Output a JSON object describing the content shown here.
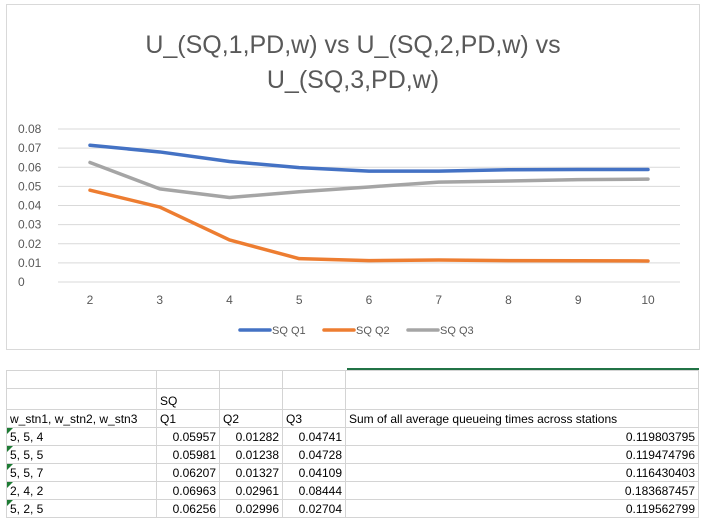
{
  "chart_data": {
    "type": "line",
    "title_lines": [
      "U_(SQ,1,PD,w) vs U_(SQ,2,PD,w) vs",
      "U_(SQ,3,PD,w)"
    ],
    "x": [
      2,
      3,
      4,
      5,
      6,
      7,
      8,
      9,
      10
    ],
    "y_ticks": [
      "0",
      "0.01",
      "0.02",
      "0.03",
      "0.04",
      "0.05",
      "0.06",
      "0.07",
      "0.08"
    ],
    "ylim": [
      0,
      0.08
    ],
    "grid": true,
    "legend_position": "bottom",
    "series": [
      {
        "name": "SQ Q1",
        "color": "#4472c4",
        "values": [
          0.0715,
          0.068,
          0.063,
          0.0598,
          0.058,
          0.058,
          0.0587,
          0.0588,
          0.0588
        ]
      },
      {
        "name": "SQ Q2",
        "color": "#ed7d31",
        "values": [
          0.048,
          0.0392,
          0.022,
          0.0122,
          0.0112,
          0.0115,
          0.0112,
          0.0111,
          0.011
        ]
      },
      {
        "name": "SQ Q3",
        "color": "#a5a5a5",
        "values": [
          0.0625,
          0.0487,
          0.0442,
          0.0472,
          0.0497,
          0.0522,
          0.0528,
          0.0535,
          0.0538
        ]
      }
    ]
  },
  "sheet": {
    "header1": [
      "",
      "SQ",
      "",
      "",
      ""
    ],
    "header2": [
      "w_stn1, w_stn2, w_stn3",
      "Q1",
      "Q2",
      "Q3",
      "Sum of all average queueing times across stations"
    ],
    "rows": [
      [
        "5, 5, 4",
        "0.05957",
        "0.01282",
        "0.04741",
        "0.119803795"
      ],
      [
        "5, 5, 5",
        "0.05981",
        "0.01238",
        "0.04728",
        "0.119474796"
      ],
      [
        "5, 5, 7",
        "0.06207",
        "0.01327",
        "0.04109",
        "0.116430403"
      ],
      [
        "2, 4, 2",
        "0.06963",
        "0.02961",
        "0.08444",
        "0.183687457"
      ],
      [
        "5, 2, 5",
        "0.06256",
        "0.02996",
        "0.02704",
        "0.119562799"
      ]
    ]
  }
}
